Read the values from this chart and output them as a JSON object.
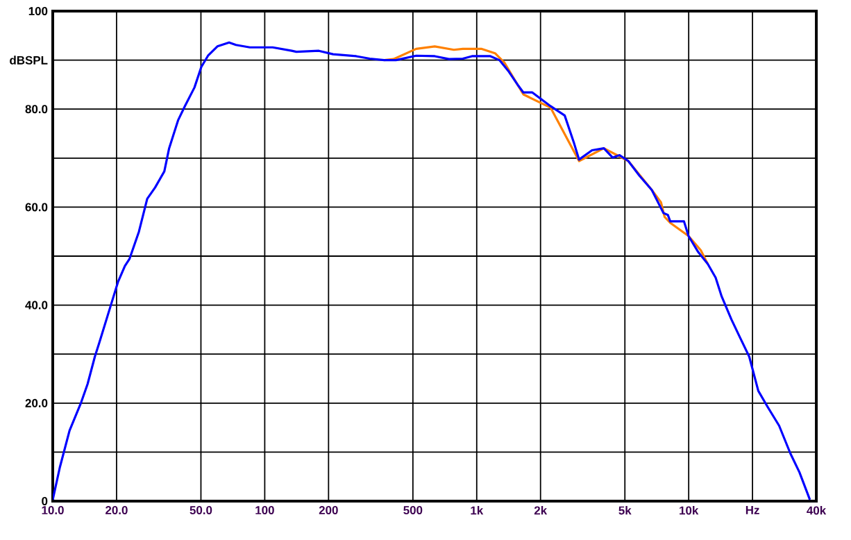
{
  "chart_data": {
    "type": "line",
    "log": "x",
    "grid": true,
    "line_style": "solid",
    "xlim": [
      10,
      40000
    ],
    "ylim": [
      0,
      100
    ],
    "xticks": [
      {
        "value": 10,
        "label": "10.0"
      },
      {
        "value": 20,
        "label": "20.0"
      },
      {
        "value": 50,
        "label": "50.0"
      },
      100,
      200,
      500,
      {
        "value": 1000,
        "label": "1k"
      },
      {
        "value": 2000,
        "label": "2k"
      },
      {
        "value": 5000,
        "label": "5k"
      },
      {
        "value": 10000,
        "label": "10k"
      },
      {
        "value": 20000,
        "label": "Hz"
      },
      {
        "value": 40000,
        "label": "40k"
      }
    ],
    "yticks": [
      0,
      {
        "value": 10,
        "label": null
      },
      {
        "value": 20,
        "label": "20.0"
      },
      {
        "value": 30,
        "label": null
      },
      {
        "value": 40,
        "label": "40.0"
      },
      {
        "value": 50,
        "label": null
      },
      {
        "value": 60,
        "label": "60.0"
      },
      {
        "value": 70,
        "label": null
      },
      {
        "value": 80,
        "label": "80.0"
      },
      {
        "value": 90,
        "label": "dBSPL"
      },
      100
    ],
    "series": [
      {
        "color": "#ff8000",
        "x": [
          366,
          405,
          518,
          634,
          780,
          860,
          1050,
          1220,
          1350,
          1660,
          2230,
          3040,
          3980,
          5190,
          6700,
          7400,
          7700,
          8180,
          9980,
          11400,
          12300
        ],
        "values": [
          90.0,
          90.2,
          92.3,
          92.8,
          92.1,
          92.3,
          92.3,
          91.4,
          89.5,
          83.0,
          80.3,
          69.4,
          72.0,
          69.4,
          63.5,
          61.0,
          58.0,
          56.8,
          54.1,
          51.2,
          48.4
        ]
      },
      {
        "color": "#0000ff",
        "x": [
          10,
          10.8,
          12,
          13.6,
          14.6,
          15.8,
          16.6,
          18.8,
          20.3,
          21.9,
          23,
          25.5,
          27.9,
          30.4,
          33.6,
          35.4,
          39,
          42,
          46.6,
          50.2,
          54,
          59.8,
          67.9,
          73.2,
          85.1,
          109,
          134,
          141,
          180,
          210,
          270,
          313,
          366,
          416,
          518,
          634,
          740,
          860,
          950,
          1160,
          1280,
          1420,
          1570,
          1660,
          1830,
          2230,
          2600,
          2880,
          3040,
          3500,
          3980,
          4380,
          4720,
          5190,
          5860,
          6700,
          7600,
          7980,
          8180,
          9500,
          9980,
          11100,
          12300,
          13400,
          14300,
          15900,
          17500,
          19300,
          21300,
          23600,
          26700,
          30200,
          33300,
          37300
        ],
        "values": [
          0.3,
          6.9,
          14.4,
          20.1,
          23.9,
          29.5,
          32.4,
          40.0,
          44.7,
          48.0,
          49.4,
          55.0,
          61.7,
          64.0,
          67.3,
          72.0,
          77.7,
          80.6,
          84.4,
          88.6,
          90.9,
          92.8,
          93.6,
          93.1,
          92.6,
          92.6,
          91.9,
          91.7,
          91.9,
          91.2,
          90.8,
          90.3,
          90.0,
          90.0,
          90.9,
          90.8,
          90.2,
          90.3,
          90.8,
          90.8,
          90.0,
          87.6,
          84.8,
          83.4,
          83.4,
          80.6,
          78.7,
          73.0,
          69.7,
          71.6,
          72.0,
          70.1,
          70.6,
          69.4,
          66.4,
          63.5,
          58.8,
          58.4,
          57.1,
          57.1,
          54.1,
          50.8,
          48.4,
          45.6,
          41.8,
          37.1,
          33.3,
          29.5,
          22.5,
          19.2,
          15.4,
          9.7,
          5.9,
          0.3
        ]
      }
    ]
  }
}
